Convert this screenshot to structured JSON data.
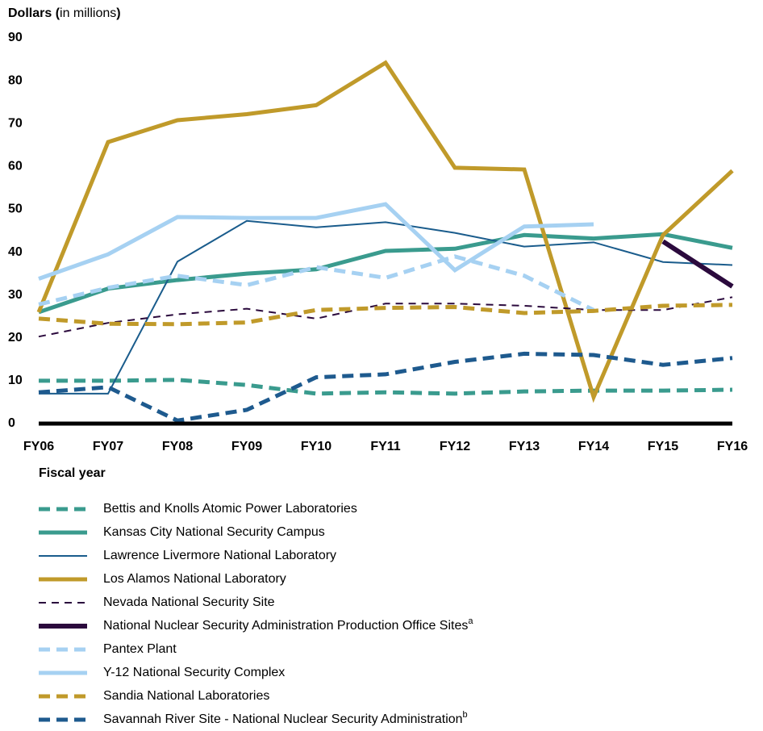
{
  "chart_data": {
    "type": "line",
    "y_label": [
      "Dollars (",
      "in millions",
      ")"
    ],
    "x_label": "Fiscal year",
    "categories": [
      "FY06",
      "FY07",
      "FY08",
      "FY09",
      "FY10",
      "FY11",
      "FY12",
      "FY13",
      "FY14",
      "FY15",
      "FY16"
    ],
    "ylim": [
      0,
      90
    ],
    "yticks": [
      0,
      10,
      20,
      30,
      40,
      50,
      60,
      70,
      80,
      90
    ],
    "grid": false,
    "legend": "bottom",
    "series": [
      {
        "name": "Bettis and Knolls Atomic Power Laboratories",
        "color": "#3a9b8e",
        "style": "dashed",
        "width": 5,
        "values": [
          10,
          10,
          10.2,
          9,
          7,
          7.3,
          7,
          7.5,
          7.7,
          7.7,
          7.9
        ]
      },
      {
        "name": "Kansas City National Security Campus",
        "color": "#3a9b8e",
        "style": "solid",
        "width": 5,
        "values": [
          26,
          31.5,
          33.5,
          35,
          36,
          40.3,
          40.8,
          44,
          43.2,
          44.2,
          41
        ]
      },
      {
        "name": "Lawrence Livermore National Laboratory",
        "color": "#1a5c8c",
        "style": "solid",
        "width": 2,
        "values": [
          7,
          7,
          37.8,
          47.3,
          45.8,
          47,
          44.5,
          41.3,
          42.3,
          37.7,
          37
        ]
      },
      {
        "name": "Los Alamos National Laboratory",
        "color": "#c09a2a",
        "style": "solid",
        "width": 5,
        "values": [
          26,
          65.7,
          70.8,
          72.2,
          74.3,
          84.2,
          59.7,
          59.3,
          6.2,
          44,
          59
        ]
      },
      {
        "name": "Nevada National Security Site",
        "color": "#2b0a3d",
        "style": "dashed",
        "width": 2,
        "values": [
          20.3,
          23.5,
          25.5,
          26.8,
          24.5,
          28,
          28,
          27.5,
          26.5,
          26.5,
          29.5
        ]
      },
      {
        "name": "National Nuclear Security Administration Production Office Sites",
        "footnote": "a",
        "color": "#2b0a3d",
        "style": "solid",
        "width": 6,
        "values": [
          null,
          null,
          null,
          null,
          null,
          null,
          null,
          null,
          null,
          42.5,
          32
        ]
      },
      {
        "name": "Pantex Plant",
        "color": "#a6d1f2",
        "style": "dashed",
        "width": 5,
        "values": [
          27.8,
          31.7,
          34.5,
          32.3,
          36.5,
          34,
          39,
          34.5,
          26.5,
          null,
          null
        ]
      },
      {
        "name": "Y-12 National Security Complex",
        "color": "#a6d1f2",
        "style": "solid",
        "width": 5,
        "values": [
          33.8,
          39.5,
          48.2,
          48,
          48,
          51.2,
          35.8,
          46,
          46.5,
          null,
          null
        ]
      },
      {
        "name": "Sandia National Laboratories",
        "color": "#c09a2a",
        "style": "dashed",
        "width": 5,
        "values": [
          24.5,
          23.3,
          23.2,
          23.6,
          26.5,
          27,
          27.2,
          25.8,
          26.3,
          27.5,
          27.7
        ]
      },
      {
        "name": "Savannah River Site - National Nuclear Security Administration",
        "footnote": "b",
        "color": "#1e5a8e",
        "style": "dashed",
        "width": 5,
        "values": [
          7.3,
          8.5,
          0.7,
          3.2,
          10.8,
          11.5,
          14.4,
          16.3,
          16,
          13.7,
          15.3
        ]
      }
    ]
  }
}
